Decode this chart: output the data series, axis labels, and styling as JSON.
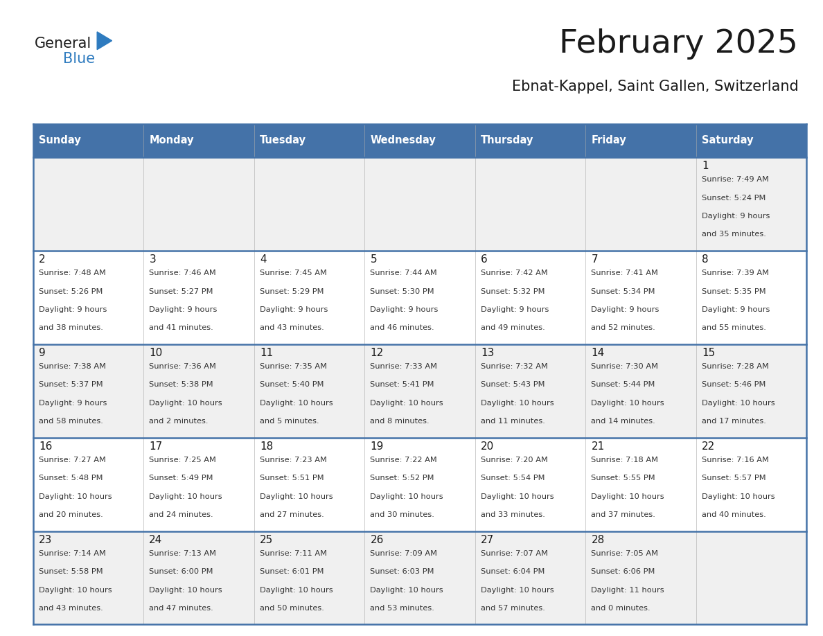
{
  "title": "February 2025",
  "subtitle": "Ebnat-Kappel, Saint Gallen, Switzerland",
  "days_of_week": [
    "Sunday",
    "Monday",
    "Tuesday",
    "Wednesday",
    "Thursday",
    "Friday",
    "Saturday"
  ],
  "header_bg": "#4472a8",
  "header_text": "#ffffff",
  "cell_bg_light": "#f0f0f0",
  "cell_bg_white": "#ffffff",
  "text_color": "#333333",
  "day_num_color": "#1a1a1a",
  "border_color": "#4472a8",
  "logo_general_color": "#1a1a1a",
  "logo_blue_color": "#2e7bbf",
  "calendar": [
    [
      null,
      null,
      null,
      null,
      null,
      null,
      {
        "day": 1,
        "sunrise": "7:49 AM",
        "sunset": "5:24 PM",
        "daylight": "9 hours and 35 minutes."
      }
    ],
    [
      {
        "day": 2,
        "sunrise": "7:48 AM",
        "sunset": "5:26 PM",
        "daylight": "9 hours and 38 minutes."
      },
      {
        "day": 3,
        "sunrise": "7:46 AM",
        "sunset": "5:27 PM",
        "daylight": "9 hours and 41 minutes."
      },
      {
        "day": 4,
        "sunrise": "7:45 AM",
        "sunset": "5:29 PM",
        "daylight": "9 hours and 43 minutes."
      },
      {
        "day": 5,
        "sunrise": "7:44 AM",
        "sunset": "5:30 PM",
        "daylight": "9 hours and 46 minutes."
      },
      {
        "day": 6,
        "sunrise": "7:42 AM",
        "sunset": "5:32 PM",
        "daylight": "9 hours and 49 minutes."
      },
      {
        "day": 7,
        "sunrise": "7:41 AM",
        "sunset": "5:34 PM",
        "daylight": "9 hours and 52 minutes."
      },
      {
        "day": 8,
        "sunrise": "7:39 AM",
        "sunset": "5:35 PM",
        "daylight": "9 hours and 55 minutes."
      }
    ],
    [
      {
        "day": 9,
        "sunrise": "7:38 AM",
        "sunset": "5:37 PM",
        "daylight": "9 hours and 58 minutes."
      },
      {
        "day": 10,
        "sunrise": "7:36 AM",
        "sunset": "5:38 PM",
        "daylight": "10 hours and 2 minutes."
      },
      {
        "day": 11,
        "sunrise": "7:35 AM",
        "sunset": "5:40 PM",
        "daylight": "10 hours and 5 minutes."
      },
      {
        "day": 12,
        "sunrise": "7:33 AM",
        "sunset": "5:41 PM",
        "daylight": "10 hours and 8 minutes."
      },
      {
        "day": 13,
        "sunrise": "7:32 AM",
        "sunset": "5:43 PM",
        "daylight": "10 hours and 11 minutes."
      },
      {
        "day": 14,
        "sunrise": "7:30 AM",
        "sunset": "5:44 PM",
        "daylight": "10 hours and 14 minutes."
      },
      {
        "day": 15,
        "sunrise": "7:28 AM",
        "sunset": "5:46 PM",
        "daylight": "10 hours and 17 minutes."
      }
    ],
    [
      {
        "day": 16,
        "sunrise": "7:27 AM",
        "sunset": "5:48 PM",
        "daylight": "10 hours and 20 minutes."
      },
      {
        "day": 17,
        "sunrise": "7:25 AM",
        "sunset": "5:49 PM",
        "daylight": "10 hours and 24 minutes."
      },
      {
        "day": 18,
        "sunrise": "7:23 AM",
        "sunset": "5:51 PM",
        "daylight": "10 hours and 27 minutes."
      },
      {
        "day": 19,
        "sunrise": "7:22 AM",
        "sunset": "5:52 PM",
        "daylight": "10 hours and 30 minutes."
      },
      {
        "day": 20,
        "sunrise": "7:20 AM",
        "sunset": "5:54 PM",
        "daylight": "10 hours and 33 minutes."
      },
      {
        "day": 21,
        "sunrise": "7:18 AM",
        "sunset": "5:55 PM",
        "daylight": "10 hours and 37 minutes."
      },
      {
        "day": 22,
        "sunrise": "7:16 AM",
        "sunset": "5:57 PM",
        "daylight": "10 hours and 40 minutes."
      }
    ],
    [
      {
        "day": 23,
        "sunrise": "7:14 AM",
        "sunset": "5:58 PM",
        "daylight": "10 hours and 43 minutes."
      },
      {
        "day": 24,
        "sunrise": "7:13 AM",
        "sunset": "6:00 PM",
        "daylight": "10 hours and 47 minutes."
      },
      {
        "day": 25,
        "sunrise": "7:11 AM",
        "sunset": "6:01 PM",
        "daylight": "10 hours and 50 minutes."
      },
      {
        "day": 26,
        "sunrise": "7:09 AM",
        "sunset": "6:03 PM",
        "daylight": "10 hours and 53 minutes."
      },
      {
        "day": 27,
        "sunrise": "7:07 AM",
        "sunset": "6:04 PM",
        "daylight": "10 hours and 57 minutes."
      },
      {
        "day": 28,
        "sunrise": "7:05 AM",
        "sunset": "6:06 PM",
        "daylight": "11 hours and 0 minutes."
      },
      null
    ]
  ]
}
